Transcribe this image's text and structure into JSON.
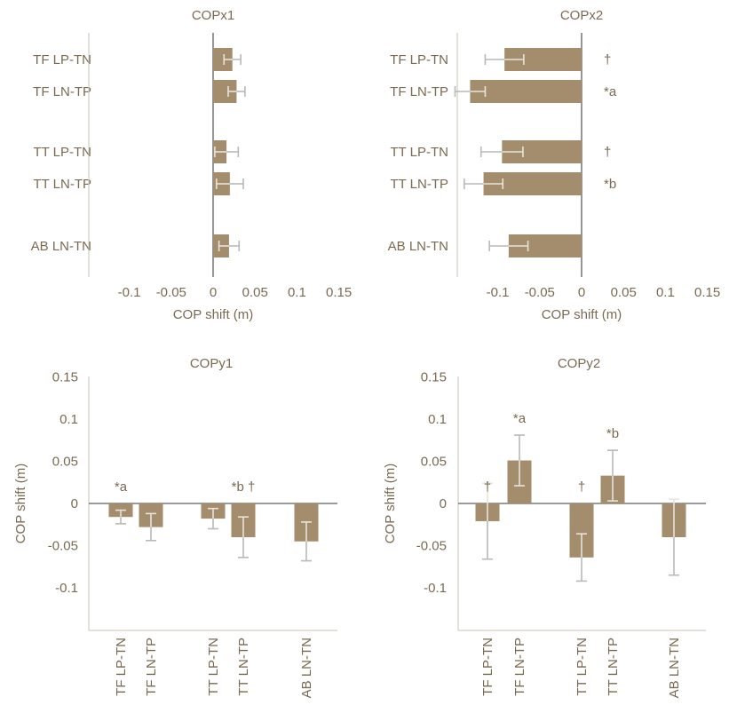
{
  "chart_data": [
    {
      "type": "bar",
      "orientation": "horizontal",
      "title": "COPx1",
      "xlabel": "COP shift (m)",
      "ylabel": "",
      "xlim": [
        -0.15,
        0.15
      ],
      "ticks": [
        "-0.1",
        "-0.05",
        "0",
        "0.05",
        "0.1",
        "0.15"
      ],
      "tick_values": [
        -0.1,
        -0.05,
        0,
        0.05,
        0.1,
        0.15
      ],
      "categories": [
        "TF LP-TN",
        "TF LN-TP",
        "TT LP-TN",
        "TT LN-TP",
        "AB LN-TN"
      ],
      "values": [
        0.023,
        0.028,
        0.016,
        0.02,
        0.019
      ],
      "errors": [
        0.01,
        0.01,
        0.014,
        0.016,
        0.012
      ],
      "annotations": [
        "",
        "",
        "",
        "",
        ""
      ]
    },
    {
      "type": "bar",
      "orientation": "horizontal",
      "title": "COPx2",
      "xlabel": "COP shift (m)",
      "ylabel": "",
      "xlim": [
        -0.15,
        0.15
      ],
      "ticks": [
        "-0.1",
        "-0.05",
        "0",
        "0.05",
        "0.1",
        "0.15"
      ],
      "tick_values": [
        -0.1,
        -0.05,
        0,
        0.05,
        0.1,
        0.15
      ],
      "categories": [
        "TF LP-TN",
        "TF LN-TP",
        "TT LP-TN",
        "TT LN-TP",
        "AB LN-TN"
      ],
      "values": [
        -0.092,
        -0.133,
        -0.095,
        -0.117,
        -0.087
      ],
      "errors": [
        0.023,
        0.018,
        0.025,
        0.023,
        0.023
      ],
      "annotations": [
        "†",
        "*a",
        "†",
        "*b",
        ""
      ]
    },
    {
      "type": "bar",
      "orientation": "vertical",
      "title": "COPy1",
      "xlabel": "",
      "ylabel": "COP shift (m)",
      "ylim": [
        -0.15,
        0.15
      ],
      "ticks": [
        "0.15",
        "0.1",
        "0.05",
        "0",
        "-0.05",
        "-0.1"
      ],
      "tick_values": [
        0.15,
        0.1,
        0.05,
        0,
        -0.05,
        -0.1
      ],
      "categories": [
        "TF LP-TN",
        "TF LN-TP",
        "TT LP-TN",
        "TT LN-TP",
        "AB LN-TN"
      ],
      "values": [
        -0.016,
        -0.028,
        -0.018,
        -0.04,
        -0.045
      ],
      "errors": [
        0.008,
        0.016,
        0.012,
        0.024,
        0.023
      ],
      "annotations": [
        "*a",
        "",
        "",
        "*b †",
        ""
      ]
    },
    {
      "type": "bar",
      "orientation": "vertical",
      "title": "COPy2",
      "xlabel": "",
      "ylabel": "COP shift (m)",
      "ylim": [
        -0.15,
        0.15
      ],
      "ticks": [
        "0.15",
        "0.1",
        "0.05",
        "0",
        "-0.05",
        "-0.1"
      ],
      "tick_values": [
        0.15,
        0.1,
        0.05,
        0,
        -0.05,
        -0.1
      ],
      "categories": [
        "TF LP-TN",
        "TF LN-TP",
        "TT LP-TN",
        "TT LN-TP",
        "AB LN-TN"
      ],
      "values": [
        -0.021,
        0.051,
        -0.064,
        0.033,
        -0.04
      ],
      "errors": [
        0.045,
        0.03,
        0.028,
        0.03,
        0.045
      ],
      "annotations": [
        "†",
        "*a",
        "†",
        "*b",
        ""
      ]
    }
  ]
}
